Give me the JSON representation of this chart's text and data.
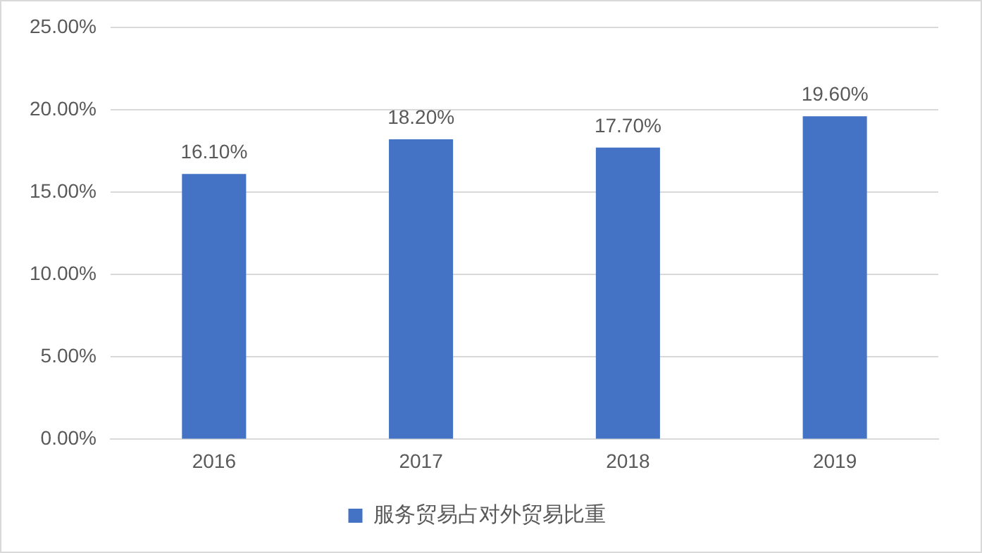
{
  "chart_data": {
    "type": "bar",
    "categories": [
      "2016",
      "2017",
      "2018",
      "2019"
    ],
    "series": [
      {
        "name": "服务贸易占对外贸易比重",
        "color": "#4472c4",
        "values": [
          16.1,
          18.2,
          17.7,
          19.6
        ],
        "value_labels": [
          "16.10%",
          "18.20%",
          "17.70%",
          "19.60%"
        ]
      }
    ],
    "ylim": [
      0,
      25
    ],
    "yticks": [
      {
        "value": 0,
        "label": "0.00%"
      },
      {
        "value": 5,
        "label": "5.00%"
      },
      {
        "value": 10,
        "label": "10.00%"
      },
      {
        "value": 15,
        "label": "15.00%"
      },
      {
        "value": 20,
        "label": "20.00%"
      },
      {
        "value": 25,
        "label": "25.00%"
      }
    ],
    "grid": "y",
    "legend": "bottom"
  }
}
